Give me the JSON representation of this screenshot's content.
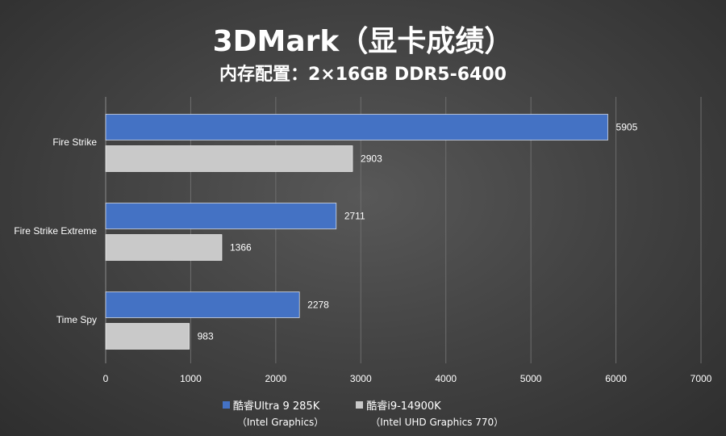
{
  "chart_data": {
    "type": "bar",
    "orientation": "horizontal",
    "title": "3DMark（显卡成绩）",
    "subtitle": "内存配置：2×16GB DDR5-6400",
    "categories": [
      "Fire Strike",
      "Fire Strike Extreme",
      "Time Spy"
    ],
    "series": [
      {
        "name": "酷睿Ultra 9 285K",
        "name_sub": "（Intel Graphics）",
        "color": "#4472c4",
        "values": [
          5905,
          2711,
          2278
        ]
      },
      {
        "name": "酷睿i9-14900K",
        "name_sub": "（Intel UHD Graphics 770）",
        "color": "#c9c9c9",
        "values": [
          2903,
          1366,
          983
        ]
      }
    ],
    "xlim": [
      0,
      7000
    ],
    "xticks": [
      0,
      1000,
      2000,
      3000,
      4000,
      5000,
      6000,
      7000
    ],
    "grid": true,
    "legend_position": "bottom"
  }
}
